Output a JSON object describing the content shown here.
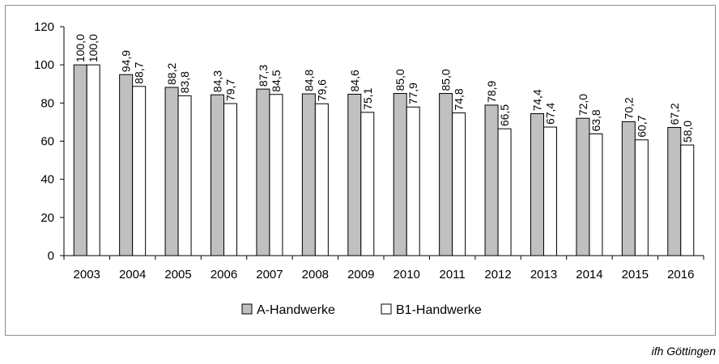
{
  "chart_data": {
    "type": "bar",
    "categories": [
      "2003",
      "2004",
      "2005",
      "2006",
      "2007",
      "2008",
      "2009",
      "2010",
      "2011",
      "2012",
      "2013",
      "2014",
      "2015",
      "2016"
    ],
    "series": [
      {
        "name": "A-Handwerke",
        "values": [
          100.0,
          94.9,
          88.2,
          84.3,
          87.3,
          84.8,
          84.6,
          85.0,
          85.0,
          78.9,
          74.4,
          72.0,
          70.2,
          67.2
        ],
        "labels": [
          "100,0",
          "94,9",
          "88,2",
          "84,3",
          "87,3",
          "84,8",
          "84,6",
          "85,0",
          "85,0",
          "78,9",
          "74,4",
          "72,0",
          "70,2",
          "67,2"
        ],
        "color": "#c0c0c0"
      },
      {
        "name": "B1-Handwerke",
        "values": [
          100.0,
          88.7,
          83.8,
          79.7,
          84.5,
          79.6,
          75.1,
          77.9,
          74.8,
          66.5,
          67.4,
          63.8,
          60.7,
          58.0
        ],
        "labels": [
          "100,0",
          "88,7",
          "83,8",
          "79,7",
          "84,5",
          "79,6",
          "75,1",
          "77,9",
          "74,8",
          "66,5",
          "67,4",
          "63,8",
          "60,7",
          "58,0"
        ],
        "color": "#ffffff"
      }
    ],
    "ylim": [
      0,
      120
    ],
    "yticks": [
      "0",
      "20",
      "40",
      "60",
      "80",
      "100",
      "120"
    ],
    "grid": false,
    "legend_position": "bottom",
    "xlabel": "",
    "ylabel": ""
  },
  "source_note": "ifh Göttingen"
}
